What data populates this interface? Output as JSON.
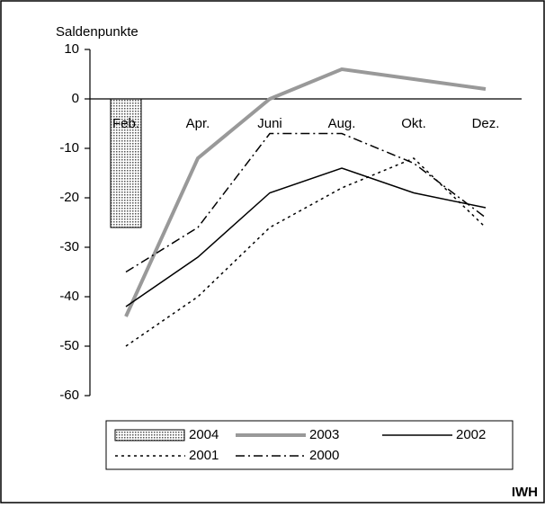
{
  "chart_data": {
    "type": "bar_line",
    "y_axis_label": "Saldenpunkte",
    "source": "IWH",
    "categories": [
      "Feb.",
      "Apr.",
      "Juni",
      "Aug.",
      "Okt.",
      "Dez."
    ],
    "ylim": [
      -60,
      10
    ],
    "yticks": [
      -60,
      -50,
      -40,
      -30,
      -20,
      -10,
      0,
      10
    ],
    "series": [
      {
        "name": "2004",
        "kind": "bar",
        "color": "#bbbbbb",
        "values": [
          -26,
          null,
          null,
          null,
          null,
          null
        ]
      },
      {
        "name": "2003",
        "kind": "line",
        "color": "#999999",
        "width": 4,
        "dash": "solid",
        "values": [
          -44,
          -12,
          0,
          6,
          4,
          2
        ]
      },
      {
        "name": "2002",
        "kind": "line",
        "color": "#000000",
        "width": 1.5,
        "dash": "solid",
        "values": [
          -42,
          -32,
          -19,
          -14,
          -19,
          -22
        ]
      },
      {
        "name": "2001",
        "kind": "line",
        "color": "#000000",
        "width": 1.5,
        "dash": "dotted",
        "values": [
          -50,
          -40,
          -26,
          -18,
          -12,
          -26
        ]
      },
      {
        "name": "2000",
        "kind": "line",
        "color": "#000000",
        "width": 1.5,
        "dash": "dashdot",
        "values": [
          -35,
          -26,
          -7,
          -7,
          -13,
          -24
        ]
      }
    ]
  }
}
